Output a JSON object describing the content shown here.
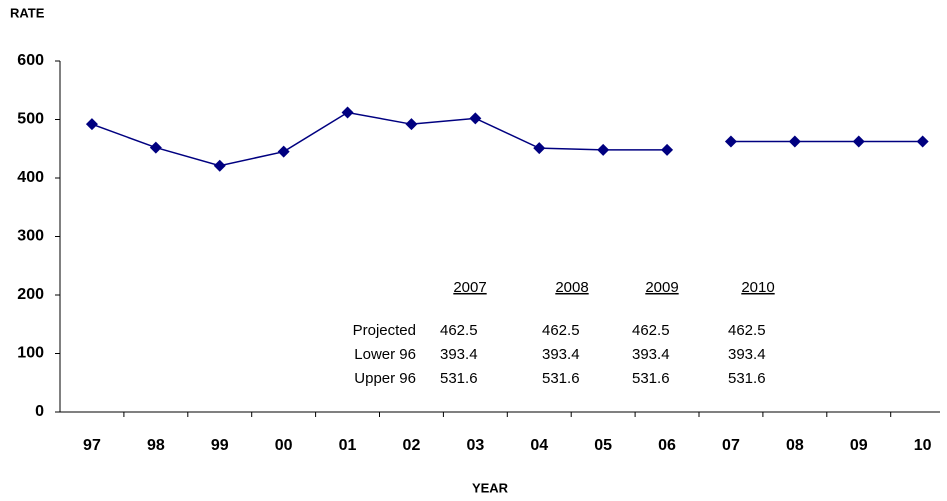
{
  "chart_data": {
    "type": "line",
    "y_label": "RATE",
    "x_label": "YEAR",
    "categories": [
      "97",
      "98",
      "99",
      "00",
      "01",
      "02",
      "03",
      "04",
      "05",
      "06",
      "07",
      "08",
      "09",
      "10"
    ],
    "series": [
      {
        "color": "#000080",
        "values": [
          492,
          452,
          421,
          445,
          512,
          492,
          502,
          451,
          448,
          448,
          null,
          null,
          null,
          null
        ]
      },
      {
        "color": "#000080",
        "values": [
          null,
          null,
          null,
          null,
          null,
          null,
          null,
          null,
          null,
          null,
          462.5,
          462.5,
          462.5,
          462.5
        ]
      }
    ],
    "ylim": [
      0,
      600
    ],
    "yticks": [
      0,
      100,
      200,
      300,
      400,
      500,
      600
    ],
    "annotation_table": {
      "columns": [
        "2007",
        "2008",
        "2009",
        "2010"
      ],
      "rows": [
        {
          "label": "Projected",
          "values": [
            462.5,
            462.5,
            462.5,
            462.5
          ]
        },
        {
          "label": "Lower 96",
          "values": [
            393.4,
            393.4,
            393.4,
            393.4
          ]
        },
        {
          "label": "Upper 96",
          "values": [
            531.6,
            531.6,
            531.6,
            531.6
          ]
        }
      ]
    }
  }
}
